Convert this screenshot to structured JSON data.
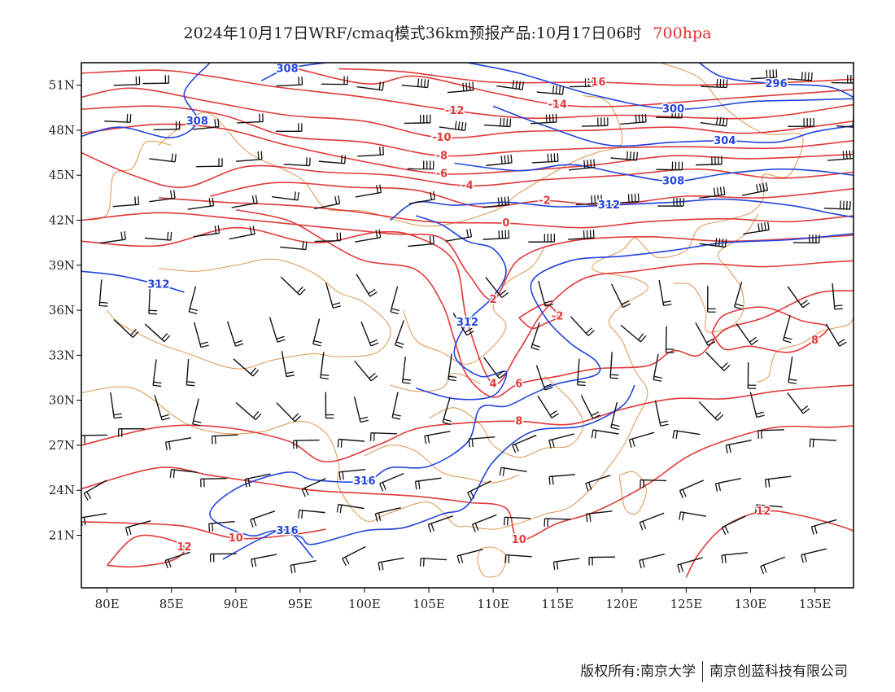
{
  "title": {
    "main": "2024年10月17日WRF/cmaq模式36km预报产品:10月17日06时",
    "level": "700hpa"
  },
  "colors": {
    "temperature": "#e03a3a",
    "height": "#2244dd",
    "border": "#d9893a",
    "wind": "#111111",
    "frame": "#000000"
  },
  "map": {
    "lon_range": [
      78,
      138
    ],
    "lat_range": [
      17.5,
      52.5
    ],
    "lon_ticks": [
      80,
      85,
      90,
      95,
      100,
      105,
      110,
      115,
      120,
      125,
      130,
      135
    ],
    "lon_tick_labels": [
      "80E",
      "85E",
      "90E",
      "95E",
      "100E",
      "105E",
      "110E",
      "115E",
      "120E",
      "125E",
      "130E",
      "135E"
    ],
    "lat_ticks": [
      21,
      24,
      27,
      30,
      33,
      36,
      39,
      42,
      45,
      48,
      51
    ],
    "lat_tick_labels": [
      "21N",
      "24N",
      "27N",
      "30N",
      "33N",
      "36N",
      "39N",
      "42N",
      "45N",
      "48N",
      "51N"
    ]
  },
  "temperature_contours": [
    {
      "label": "-16",
      "points": [
        [
          98,
          52.1
        ],
        [
          103,
          51.9
        ],
        [
          110,
          51.2
        ],
        [
          118,
          51.2
        ],
        [
          125,
          51.0
        ],
        [
          133,
          51.2
        ],
        [
          138,
          51.4
        ]
      ]
    },
    {
      "label": "-14",
      "points": [
        [
          93,
          52.5
        ],
        [
          100,
          51.1
        ],
        [
          104,
          51.6
        ],
        [
          110,
          50.5
        ],
        [
          115,
          49.7
        ],
        [
          120,
          49.6
        ],
        [
          128,
          50.1
        ],
        [
          138,
          50.7
        ]
      ]
    },
    {
      "label": "-12",
      "points": [
        [
          78,
          51.8
        ],
        [
          84,
          52.0
        ],
        [
          88,
          51.6
        ],
        [
          93,
          50.9
        ],
        [
          100,
          50.2
        ],
        [
          107,
          49.3
        ],
        [
          113,
          48.8
        ],
        [
          120,
          49.0
        ],
        [
          130,
          48.8
        ],
        [
          138,
          49.7
        ]
      ]
    },
    {
      "label": "-10",
      "points": [
        [
          78,
          50.2
        ],
        [
          82,
          50.8
        ],
        [
          88,
          49.9
        ],
        [
          94,
          49.0
        ],
        [
          100,
          48.6
        ],
        [
          106,
          47.5
        ],
        [
          112,
          47.9
        ],
        [
          118,
          48.0
        ],
        [
          124,
          48.2
        ],
        [
          130,
          47.8
        ],
        [
          138,
          48.6
        ]
      ]
    },
    {
      "label": "-8",
      "points": [
        [
          78,
          49.4
        ],
        [
          84,
          49.6
        ],
        [
          89,
          49.0
        ],
        [
          94,
          47.6
        ],
        [
          100,
          47.2
        ],
        [
          106,
          46.3
        ],
        [
          112,
          46.6
        ],
        [
          118,
          46.8
        ],
        [
          125,
          46.9
        ],
        [
          132,
          46.8
        ],
        [
          138,
          47.3
        ]
      ]
    },
    {
      "label": "-6",
      "points": [
        [
          78,
          47.8
        ],
        [
          84,
          48.4
        ],
        [
          89,
          48.1
        ],
        [
          94,
          47.0
        ],
        [
          100,
          45.9
        ],
        [
          106,
          45.1
        ],
        [
          112,
          45.3
        ],
        [
          118,
          45.7
        ],
        [
          124,
          46.3
        ],
        [
          130,
          46.1
        ],
        [
          138,
          46.4
        ]
      ]
    },
    {
      "label": "-4",
      "points": [
        [
          78,
          46.5
        ],
        [
          82,
          45.0
        ],
        [
          86,
          44.2
        ],
        [
          91,
          45.6
        ],
        [
          97,
          45.2
        ],
        [
          102,
          45.0
        ],
        [
          108,
          44.3
        ],
        [
          114,
          44.7
        ],
        [
          120,
          45.0
        ],
        [
          126,
          45.4
        ],
        [
          132,
          44.8
        ],
        [
          138,
          45.2
        ]
      ]
    },
    {
      "label": "-2",
      "points": [
        [
          88,
          43.6
        ],
        [
          93,
          44.5
        ],
        [
          99,
          44.2
        ],
        [
          104,
          44.0
        ],
        [
          109,
          42.9
        ],
        [
          114,
          43.3
        ],
        [
          119,
          43.0
        ],
        [
          125,
          43.6
        ],
        [
          131,
          43.5
        ],
        [
          138,
          44.1
        ]
      ]
    },
    {
      "label": "0",
      "points": [
        [
          84,
          43.5
        ],
        [
          89,
          43.2
        ],
        [
          94,
          43.0
        ],
        [
          99,
          42.6
        ],
        [
          105,
          41.9
        ],
        [
          111,
          41.8
        ],
        [
          117,
          41.5
        ],
        [
          122,
          41.9
        ],
        [
          128,
          42.1
        ],
        [
          133,
          41.9
        ],
        [
          138,
          42.3
        ]
      ]
    },
    {
      "label": "2",
      "points": [
        [
          78,
          42.0
        ],
        [
          84,
          42.5
        ],
        [
          90,
          42.1
        ],
        [
          96,
          41.6
        ],
        [
          102,
          41.1
        ],
        [
          106,
          40.8
        ],
        [
          108,
          38.5
        ],
        [
          110,
          36.7
        ],
        [
          112,
          39.4
        ],
        [
          116,
          40.6
        ],
        [
          122,
          40.9
        ],
        [
          128,
          40.6
        ],
        [
          134,
          40.8
        ],
        [
          138,
          41.0
        ]
      ]
    },
    {
      "label": "4",
      "points": [
        [
          78,
          40.6
        ],
        [
          84,
          40.3
        ],
        [
          90,
          41.5
        ],
        [
          96,
          40.5
        ],
        [
          101,
          41.2
        ],
        [
          104,
          40.9
        ],
        [
          107,
          39.2
        ],
        [
          108,
          35.2
        ],
        [
          110,
          31.1
        ],
        [
          112,
          33.3
        ],
        [
          114,
          36.0
        ],
        [
          117,
          38.1
        ],
        [
          121,
          38.6
        ],
        [
          126,
          39.1
        ],
        [
          131,
          38.9
        ],
        [
          136,
          39.2
        ],
        [
          138,
          39.3
        ]
      ]
    },
    {
      "label": "-2",
      "points": [
        [
          112,
          35.5
        ],
        [
          113,
          34.8
        ],
        [
          114,
          35.1
        ],
        [
          115,
          35.6
        ],
        [
          114,
          36.4
        ],
        [
          112,
          35.5
        ]
      ]
    },
    {
      "label": "6",
      "points": [
        [
          90,
          42.7
        ],
        [
          94,
          42.0
        ],
        [
          97,
          40.6
        ],
        [
          100,
          39.3
        ],
        [
          104,
          38.7
        ],
        [
          106,
          36.5
        ],
        [
          107,
          34.0
        ],
        [
          108,
          31.6
        ],
        [
          110,
          30.2
        ],
        [
          112,
          31.1
        ],
        [
          115,
          31.6
        ],
        [
          118,
          32.1
        ],
        [
          122,
          32.3
        ],
        [
          124,
          33.3
        ],
        [
          126,
          33.0
        ],
        [
          128,
          34.7
        ],
        [
          131,
          35.5
        ],
        [
          135,
          37.1
        ],
        [
          138,
          37.3
        ]
      ]
    },
    {
      "label": "8",
      "points": [
        [
          78,
          27.0
        ],
        [
          84,
          28.2
        ],
        [
          89,
          28.2
        ],
        [
          94,
          27.3
        ],
        [
          97,
          25.9
        ],
        [
          101,
          27.0
        ],
        [
          104,
          28.1
        ],
        [
          108,
          28.5
        ],
        [
          112,
          28.6
        ],
        [
          116,
          28.4
        ],
        [
          120,
          29.4
        ],
        [
          124,
          30.1
        ],
        [
          128,
          30.1
        ],
        [
          132,
          30.6
        ],
        [
          136,
          30.9
        ],
        [
          138,
          31.0
        ]
      ]
    },
    {
      "label": "8",
      "points": [
        [
          127,
          34.5
        ],
        [
          128,
          35.7
        ],
        [
          131,
          36.2
        ],
        [
          134,
          35.3
        ],
        [
          136,
          34.9
        ],
        [
          135,
          34.0
        ],
        [
          133,
          33.2
        ],
        [
          130,
          33.6
        ],
        [
          128,
          33.4
        ],
        [
          127,
          34.5
        ]
      ]
    },
    {
      "label": "10",
      "points": [
        [
          78,
          24.1
        ],
        [
          84,
          25.5
        ],
        [
          88,
          25.0
        ],
        [
          92,
          24.5
        ],
        [
          96,
          24.0
        ],
        [
          100,
          23.8
        ],
        [
          104,
          23.6
        ],
        [
          108,
          23.2
        ],
        [
          111,
          22.8
        ],
        [
          112,
          20.7
        ],
        [
          115,
          21.8
        ],
        [
          118,
          22.6
        ],
        [
          122,
          24.4
        ],
        [
          125,
          26.2
        ],
        [
          128,
          27.3
        ],
        [
          132,
          28.2
        ],
        [
          136,
          28.2
        ],
        [
          138,
          28.3
        ]
      ]
    },
    {
      "label": "10",
      "points": [
        [
          78,
          21.9
        ],
        [
          82,
          21.8
        ],
        [
          86,
          21.6
        ],
        [
          90,
          20.8
        ],
        [
          94,
          21.0
        ],
        [
          97,
          21.4
        ]
      ]
    },
    {
      "label": "12",
      "points": [
        [
          80,
          19.0
        ],
        [
          82,
          20.8
        ],
        [
          84,
          20.9
        ],
        [
          86,
          20.2
        ],
        [
          85,
          19.3
        ],
        [
          82,
          18.9
        ],
        [
          80,
          19.0
        ]
      ]
    },
    {
      "label": "12",
      "points": [
        [
          125,
          18.2
        ],
        [
          126,
          19.8
        ],
        [
          128,
          21.6
        ],
        [
          131,
          22.6
        ],
        [
          134,
          22.3
        ],
        [
          137,
          21.6
        ],
        [
          138,
          21.3
        ]
      ]
    }
  ],
  "height_contours": [
    {
      "label": "296",
      "points": [
        [
          126,
          52.5
        ],
        [
          128,
          51.5
        ],
        [
          132,
          51.1
        ],
        [
          136,
          50.9
        ],
        [
          138,
          50.2
        ]
      ]
    },
    {
      "label": "300",
      "points": [
        [
          108,
          52.5
        ],
        [
          112,
          51.8
        ],
        [
          118,
          50.3
        ],
        [
          124,
          49.4
        ],
        [
          130,
          49.9
        ],
        [
          134,
          50.0
        ],
        [
          138,
          50.1
        ]
      ]
    },
    {
      "label": "304",
      "points": [
        [
          110,
          49.6
        ],
        [
          114,
          48.3
        ],
        [
          119,
          47.0
        ],
        [
          124,
          47.2
        ],
        [
          128,
          47.3
        ],
        [
          132,
          47.2
        ],
        [
          135,
          47.9
        ],
        [
          138,
          48.3
        ]
      ]
    },
    {
      "label": "308",
      "points": [
        [
          78,
          47.6
        ],
        [
          81,
          48.2
        ],
        [
          85,
          47.5
        ],
        [
          87,
          48.6
        ],
        [
          86,
          50.5
        ],
        [
          88,
          52.5
        ]
      ]
    },
    {
      "label": "308",
      "points": [
        [
          92,
          51.3
        ],
        [
          94,
          52.1
        ],
        [
          97,
          52.5
        ]
      ]
    },
    {
      "label": "308",
      "points": [
        [
          107,
          45.8
        ],
        [
          112,
          45.3
        ],
        [
          116,
          45.7
        ],
        [
          120,
          45.1
        ],
        [
          124,
          44.6
        ],
        [
          128,
          45.1
        ],
        [
          132,
          45.4
        ],
        [
          135,
          45.3
        ],
        [
          138,
          45.0
        ]
      ]
    },
    {
      "label": "312",
      "points": [
        [
          78,
          38.6
        ],
        [
          81,
          38.3
        ],
        [
          84,
          37.7
        ],
        [
          86,
          37.2
        ]
      ]
    },
    {
      "label": "312",
      "points": [
        [
          102,
          42.0
        ],
        [
          104,
          43.2
        ],
        [
          107,
          43.0
        ],
        [
          111,
          43.2
        ],
        [
          115,
          42.9
        ],
        [
          119,
          43.0
        ],
        [
          124,
          43.2
        ],
        [
          128,
          43.4
        ],
        [
          133,
          43.0
        ],
        [
          136,
          42.5
        ],
        [
          138,
          42.2
        ]
      ]
    },
    {
      "label": "312",
      "points": [
        [
          104,
          42.3
        ],
        [
          106,
          41.7
        ],
        [
          108,
          40.6
        ],
        [
          110,
          40.1
        ],
        [
          111,
          38.6
        ],
        [
          110,
          36.9
        ],
        [
          108,
          35.2
        ],
        [
          107,
          33.0
        ],
        [
          109,
          31.6
        ],
        [
          111,
          31.9
        ],
        [
          110,
          30.3
        ],
        [
          107,
          30.1
        ],
        [
          104,
          30.8
        ]
      ]
    },
    {
      "label": "316",
      "points": [
        [
          138,
          41.1
        ],
        [
          133,
          40.7
        ],
        [
          128,
          40.5
        ],
        [
          124,
          40.0
        ],
        [
          120,
          39.6
        ],
        [
          116,
          39.3
        ],
        [
          113,
          37.9
        ],
        [
          114,
          35.6
        ],
        [
          116,
          33.8
        ],
        [
          118,
          32.6
        ],
        [
          118,
          31.7
        ],
        [
          115,
          31.1
        ],
        [
          113,
          30.4
        ],
        [
          111,
          29.6
        ],
        [
          109,
          29.5
        ],
        [
          108,
          27.2
        ],
        [
          105,
          25.6
        ],
        [
          102,
          25.5
        ],
        [
          100,
          24.6
        ],
        [
          96,
          24.7
        ],
        [
          94,
          25.2
        ],
        [
          90,
          24.1
        ],
        [
          88,
          22.3
        ],
        [
          91,
          21.0
        ],
        [
          93,
          21.3
        ],
        [
          95,
          20.9
        ],
        [
          96,
          20.4
        ],
        [
          100,
          21.3
        ],
        [
          103,
          21.5
        ],
        [
          106,
          22.4
        ],
        [
          108,
          23.0
        ],
        [
          110,
          25.9
        ],
        [
          113,
          27.9
        ],
        [
          117,
          28.3
        ],
        [
          120,
          29.6
        ],
        [
          121,
          31.0
        ]
      ]
    },
    {
      "label": "316",
      "points": [
        [
          89,
          19.4
        ],
        [
          92,
          20.8
        ],
        [
          94,
          21.3
        ],
        [
          96,
          19.5
        ]
      ]
    }
  ],
  "footer": {
    "copyright": "版权所有:南京大学",
    "company": "南京创蓝科技有限公司"
  }
}
